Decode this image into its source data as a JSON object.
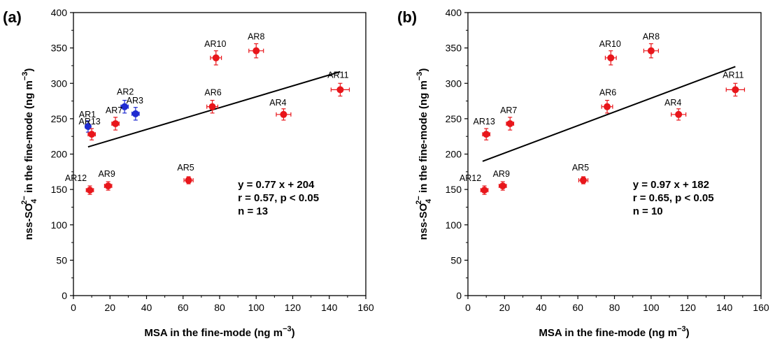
{
  "chart_data": [
    {
      "type": "scatter",
      "panel_label": "(a)",
      "xlabel_main": "MSA in the fine-mode (ng m",
      "xlabel_exp": "−3",
      "xlabel_close": ")",
      "ylabel_a": "nss-SO",
      "ylabel_sub": "4",
      "ylabel_sup": "2−",
      "ylabel_b": " in the fine-mode (ng m",
      "ylabel_exp": "−3",
      "ylabel_close": ")",
      "xlim": [
        0,
        160
      ],
      "ylim": [
        0,
        400
      ],
      "x_ticks": [
        "0",
        "20",
        "40",
        "60",
        "80",
        "100",
        "120",
        "140",
        "160"
      ],
      "y_ticks": [
        "0",
        "50",
        "100",
        "150",
        "200",
        "250",
        "300",
        "350",
        "400"
      ],
      "grid": false,
      "colors": {
        "red": "#e8161b",
        "blue": "#1f2bd1",
        "line": "#000000"
      },
      "points": [
        {
          "label": "AR1",
          "x": 8,
          "y": 239,
          "xerr": 1.5,
          "yerr": 8,
          "color": "blue"
        },
        {
          "label": "AR2",
          "x": 28,
          "y": 267,
          "xerr": 2,
          "yerr": 9,
          "color": "blue"
        },
        {
          "label": "AR3",
          "x": 34,
          "y": 257,
          "xerr": 2,
          "yerr": 9,
          "color": "blue"
        },
        {
          "label": "AR13",
          "x": 10,
          "y": 228,
          "xerr": 2,
          "yerr": 8,
          "color": "red"
        },
        {
          "label": "AR7",
          "x": 23,
          "y": 243,
          "xerr": 2,
          "yerr": 9,
          "color": "red"
        },
        {
          "label": "AR12",
          "x": 9,
          "y": 149,
          "xerr": 2,
          "yerr": 6,
          "color": "red"
        },
        {
          "label": "AR9",
          "x": 19,
          "y": 155,
          "xerr": 2,
          "yerr": 6,
          "color": "red"
        },
        {
          "label": "AR5",
          "x": 63,
          "y": 163,
          "xerr": 2.5,
          "yerr": 5,
          "color": "red"
        },
        {
          "label": "AR6",
          "x": 76,
          "y": 267,
          "xerr": 3,
          "yerr": 9,
          "color": "red"
        },
        {
          "label": "AR10",
          "x": 78,
          "y": 336,
          "xerr": 3,
          "yerr": 10,
          "color": "red"
        },
        {
          "label": "AR8",
          "x": 100,
          "y": 346,
          "xerr": 4,
          "yerr": 10,
          "color": "red"
        },
        {
          "label": "AR4",
          "x": 115,
          "y": 256,
          "xerr": 4,
          "yerr": 8,
          "color": "red"
        },
        {
          "label": "AR11",
          "x": 146,
          "y": 291,
          "xerr": 5,
          "yerr": 9,
          "color": "red"
        }
      ],
      "fit": {
        "slope": 0.77,
        "intercept": 204,
        "x_range": [
          8,
          146
        ]
      },
      "annotation_lines": [
        "y = 0.77 x + 204",
        "r = 0.57, p < 0.05",
        "n = 13"
      ]
    },
    {
      "type": "scatter",
      "panel_label": "(b)",
      "xlabel_main": "MSA in the fine-mode (ng m",
      "xlabel_exp": "−3",
      "xlabel_close": ")",
      "ylabel_a": "nss-SO",
      "ylabel_sub": "4",
      "ylabel_sup": "2−",
      "ylabel_b": " in the fine-mode (ng m",
      "ylabel_exp": "−3",
      "ylabel_close": ")",
      "xlim": [
        0,
        160
      ],
      "ylim": [
        0,
        400
      ],
      "x_ticks": [
        "0",
        "20",
        "40",
        "60",
        "80",
        "100",
        "120",
        "140",
        "160"
      ],
      "y_ticks": [
        "0",
        "50",
        "100",
        "150",
        "200",
        "250",
        "300",
        "350",
        "400"
      ],
      "grid": false,
      "colors": {
        "red": "#e8161b",
        "blue": "#1f2bd1",
        "line": "#000000"
      },
      "points": [
        {
          "label": "AR13",
          "x": 10,
          "y": 228,
          "xerr": 2,
          "yerr": 8,
          "color": "red"
        },
        {
          "label": "AR7",
          "x": 23,
          "y": 243,
          "xerr": 2,
          "yerr": 9,
          "color": "red"
        },
        {
          "label": "AR12",
          "x": 9,
          "y": 149,
          "xerr": 2,
          "yerr": 6,
          "color": "red"
        },
        {
          "label": "AR9",
          "x": 19,
          "y": 155,
          "xerr": 2,
          "yerr": 6,
          "color": "red"
        },
        {
          "label": "AR5",
          "x": 63,
          "y": 163,
          "xerr": 2.5,
          "yerr": 5,
          "color": "red"
        },
        {
          "label": "AR6",
          "x": 76,
          "y": 267,
          "xerr": 3,
          "yerr": 9,
          "color": "red"
        },
        {
          "label": "AR10",
          "x": 78,
          "y": 336,
          "xerr": 3,
          "yerr": 10,
          "color": "red"
        },
        {
          "label": "AR8",
          "x": 100,
          "y": 346,
          "xerr": 4,
          "yerr": 10,
          "color": "red"
        },
        {
          "label": "AR4",
          "x": 115,
          "y": 256,
          "xerr": 4,
          "yerr": 8,
          "color": "red"
        },
        {
          "label": "AR11",
          "x": 146,
          "y": 291,
          "xerr": 5,
          "yerr": 9,
          "color": "red"
        }
      ],
      "fit": {
        "slope": 0.97,
        "intercept": 182,
        "x_range": [
          8,
          146
        ]
      },
      "annotation_lines": [
        "y = 0.97 x + 182",
        "r = 0.65, p < 0.05",
        "n = 10"
      ]
    }
  ]
}
